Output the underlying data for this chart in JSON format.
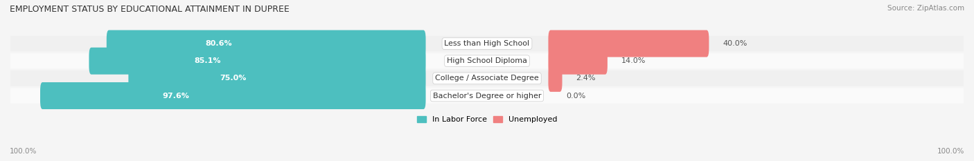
{
  "title": "EMPLOYMENT STATUS BY EDUCATIONAL ATTAINMENT IN DUPREE",
  "source": "Source: ZipAtlas.com",
  "categories": [
    "Less than High School",
    "High School Diploma",
    "College / Associate Degree",
    "Bachelor's Degree or higher"
  ],
  "labor_force_pct": [
    80.6,
    85.1,
    75.0,
    97.6
  ],
  "unemployed_pct": [
    40.0,
    14.0,
    2.4,
    0.0
  ],
  "labor_force_color": "#4DBFBF",
  "unemployed_color": "#F08080",
  "bar_bg_color": "#E8E8E8",
  "row_bg_colors": [
    "#F0F0F0",
    "#FAFAFA",
    "#F0F0F0",
    "#FAFAFA"
  ],
  "axis_label_left": "100.0%",
  "axis_label_right": "100.0%",
  "legend_labor": "In Labor Force",
  "legend_unemployed": "Unemployed",
  "title_fontsize": 9,
  "source_fontsize": 7.5,
  "bar_label_fontsize": 8,
  "category_fontsize": 8,
  "legend_fontsize": 8,
  "axis_tick_fontsize": 7.5,
  "figsize": [
    14.06,
    2.33
  ],
  "dpi": 100
}
